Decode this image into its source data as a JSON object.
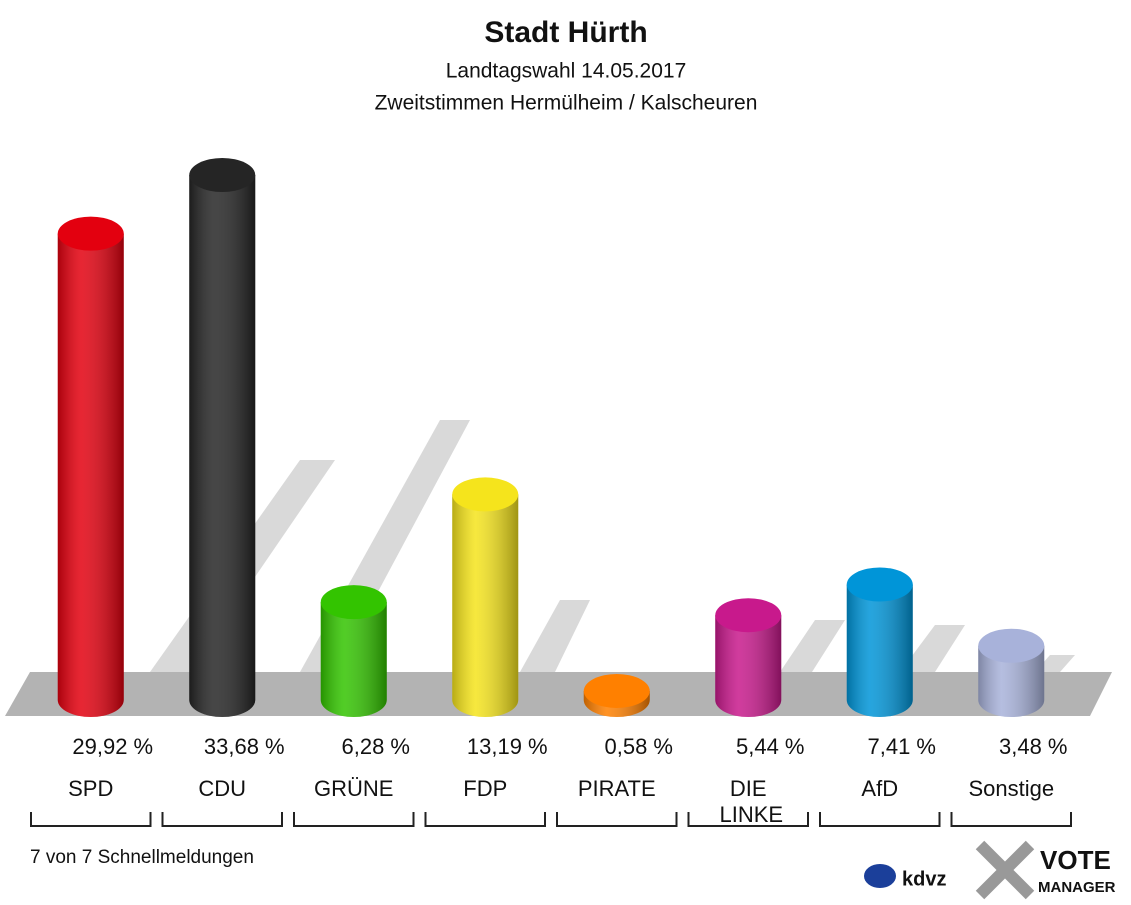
{
  "chart_data": {
    "type": "bar",
    "title": "Stadt Hürth",
    "subtitle": "Landtagswahl 14.05.2017",
    "subtitle2": "Zweitstimmen Hermülheim / Kalscheuren",
    "categories": [
      "SPD",
      "CDU",
      "GRÜNE",
      "FDP",
      "PIRATE",
      "DIE LINKE",
      "AfD",
      "Sonstige"
    ],
    "values": [
      29.92,
      33.68,
      6.28,
      13.19,
      0.58,
      5.44,
      7.41,
      3.48
    ],
    "value_labels": [
      "29,92 %",
      "33,68 %",
      "6,28 %",
      "13,19 %",
      "0,58 %",
      "5,44 %",
      "7,41 %",
      "3,48 %"
    ],
    "colors": [
      "#e3000f",
      "#252525",
      "#33c400",
      "#f5e41c",
      "#ff8000",
      "#c8198c",
      "#0095d8",
      "#a8b2da"
    ],
    "footnote": "7 von 7 Schnellmeldungen",
    "logo_left": "kdvz",
    "logo_right": [
      "VOTE",
      "MANAGER"
    ]
  }
}
